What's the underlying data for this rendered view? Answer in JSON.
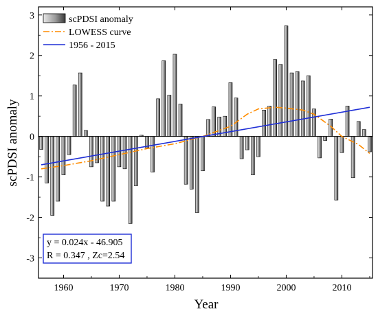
{
  "chart_data": {
    "type": "bar",
    "title": "",
    "xlabel": "Year",
    "ylabel": "scPDSI anomaly",
    "xlim": [
      1955.5,
      2015.5
    ],
    "ylim": [
      -3.5,
      3.2
    ],
    "xticks": [
      1960,
      1970,
      1980,
      1990,
      2000,
      2010
    ],
    "yticks": [
      -3,
      -2,
      -1,
      0,
      1,
      2,
      3
    ],
    "grid": false,
    "legend_position": "top-left",
    "legend": {
      "bars": "scPDSI anomaly",
      "lowess": "LOWESS curve",
      "trend": "1956 - 2015"
    },
    "colors": {
      "bar_light": "#e6e6e6",
      "bar_dark": "#3a3a3a",
      "lowess": "#ff8c00",
      "trend": "#1f2fd6",
      "equation_box": "#1f2fd6"
    },
    "series": [
      {
        "name": "scPDSI anomaly",
        "x": [
          1956,
          1957,
          1958,
          1959,
          1960,
          1961,
          1962,
          1963,
          1964,
          1965,
          1966,
          1967,
          1968,
          1969,
          1970,
          1971,
          1972,
          1973,
          1974,
          1975,
          1976,
          1977,
          1978,
          1979,
          1980,
          1981,
          1982,
          1983,
          1984,
          1985,
          1986,
          1987,
          1988,
          1989,
          1990,
          1991,
          1992,
          1993,
          1994,
          1995,
          1996,
          1997,
          1998,
          1999,
          2000,
          2001,
          2002,
          2003,
          2004,
          2005,
          2006,
          2007,
          2008,
          2009,
          2010,
          2011,
          2012,
          2013,
          2014,
          2015
        ],
        "values": [
          -0.32,
          -1.15,
          -1.95,
          -1.6,
          -0.95,
          -0.45,
          1.27,
          1.57,
          0.15,
          -0.75,
          -0.65,
          -1.6,
          -1.72,
          -1.6,
          -0.75,
          -0.8,
          -2.15,
          -1.22,
          0.03,
          -0.28,
          -0.88,
          0.93,
          1.87,
          1.02,
          2.03,
          0.8,
          -1.18,
          -1.3,
          -1.88,
          -0.85,
          0.42,
          0.73,
          0.48,
          0.5,
          1.33,
          0.95,
          -0.55,
          -0.33,
          -0.95,
          -0.5,
          0.65,
          0.75,
          1.9,
          1.78,
          2.73,
          1.57,
          1.6,
          1.37,
          1.5,
          0.68,
          -0.53,
          -0.1,
          0.43,
          -1.57,
          -0.4,
          0.75,
          -1.02,
          0.37,
          0.17,
          -0.38
        ]
      },
      {
        "name": "LOWESS curve",
        "x": [
          1956,
          1960,
          1965,
          1970,
          1975,
          1980,
          1985,
          1990,
          1993,
          1995,
          1998,
          2000,
          2003,
          2005,
          2008,
          2010,
          2013,
          2015
        ],
        "values": [
          -0.8,
          -0.72,
          -0.6,
          -0.45,
          -0.3,
          -0.18,
          0.0,
          0.25,
          0.55,
          0.68,
          0.72,
          0.7,
          0.65,
          0.55,
          0.25,
          0.0,
          -0.2,
          -0.42
        ]
      },
      {
        "name": "1956 - 2015",
        "x": [
          1956,
          2015
        ],
        "values": [
          -0.7,
          0.72
        ]
      }
    ],
    "annotation": {
      "line1": "y = 0.024x - 46.905",
      "line2": "R = 0.347 , Zc=2.54"
    }
  }
}
